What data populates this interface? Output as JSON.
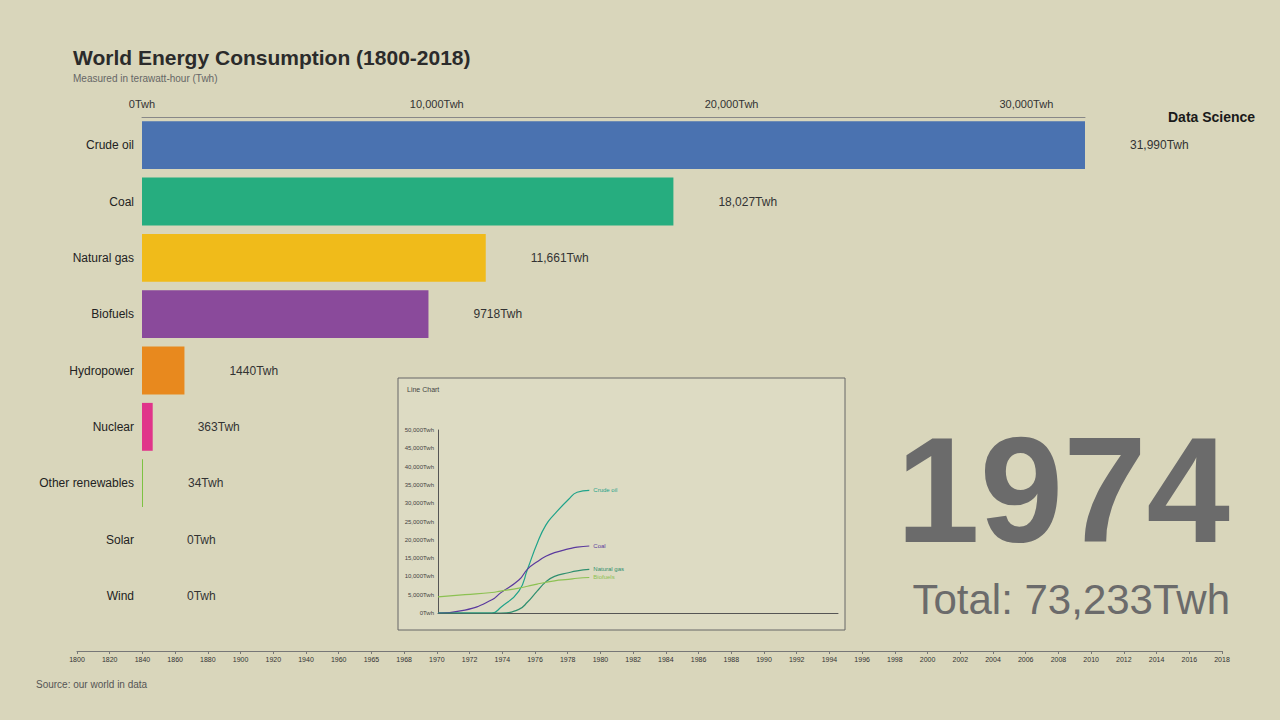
{
  "chart_data": [
    {
      "type": "bar",
      "orientation": "horizontal",
      "title": "World Energy Consumption (1800-2018)",
      "subtitle": "Measured in terawatt-hour (Twh)",
      "categories": [
        "Crude oil",
        "Coal",
        "Natural gas",
        "Biofuels",
        "Hydropower",
        "Nuclear",
        "Other renewables",
        "Solar",
        "Wind"
      ],
      "values": [
        31990,
        18027,
        11661,
        9718,
        1440,
        363,
        34,
        0,
        0
      ],
      "value_labels": [
        "31,990Twh",
        "18,027Twh",
        "11,661Twh",
        "9718Twh",
        "1440Twh",
        "363Twh",
        "34Twh",
        "0Twh",
        "0Twh"
      ],
      "colors": [
        "#4a72b0",
        "#26ad7f",
        "#f0bb1a",
        "#8a4a9b",
        "#e8891e",
        "#e0348a",
        "#7dc242",
        "#3b4a8a",
        "#2e7bbd"
      ],
      "xlim": [
        0,
        31990
      ],
      "xticks": [
        {
          "value": 0,
          "label": "0Twh"
        },
        {
          "value": 10000,
          "label": "10,000Twh"
        },
        {
          "value": 20000,
          "label": "20,000Twh"
        },
        {
          "value": 30000,
          "label": "30,000Twh"
        }
      ],
      "data_labels": true,
      "grid": false,
      "annotations": {
        "year": "1974",
        "total": "Total: 73,233Twh",
        "brand": "Data Science",
        "source": "Source: our world in data"
      }
    },
    {
      "type": "line",
      "title": "Line Chart",
      "x": [
        1800,
        1831,
        1862,
        1872,
        1893,
        1903,
        1914,
        1924,
        1934,
        1950,
        1960,
        1974
      ],
      "series": [
        {
          "name": "Crude oil",
          "color": "#1fa38a",
          "values": [
            0,
            0,
            0,
            1500,
            6000,
            12000,
            19000,
            24000,
            27000,
            31000,
            33000,
            33500
          ]
        },
        {
          "name": "Coal",
          "color": "#5b3a9e",
          "values": [
            0,
            800,
            3600,
            5500,
            9000,
            12000,
            14000,
            15500,
            16500,
            17500,
            18000,
            18300
          ]
        },
        {
          "name": "Natural gas",
          "color": "#2f8f6f",
          "values": [
            0,
            0,
            0,
            0,
            1000,
            3000,
            6000,
            8500,
            10000,
            11000,
            11500,
            11900
          ]
        },
        {
          "name": "Biofuels",
          "color": "#8cc152",
          "values": [
            4400,
            5000,
            5600,
            6000,
            6800,
            7300,
            7900,
            8400,
            8800,
            9200,
            9500,
            9700
          ]
        }
      ],
      "xlim": [
        1800,
        2260
      ],
      "ylim": [
        0,
        50000
      ],
      "yticks": [
        {
          "value": 0,
          "label": "0Twh"
        },
        {
          "value": 5000,
          "label": "5,000Twh"
        },
        {
          "value": 10000,
          "label": "10,000Twh"
        },
        {
          "value": 15000,
          "label": "15,000Twh"
        },
        {
          "value": 20000,
          "label": "20,000Twh"
        },
        {
          "value": 25000,
          "label": "25,000Twh"
        },
        {
          "value": 30000,
          "label": "30,000Twh"
        },
        {
          "value": 35000,
          "label": "35,000Twh"
        },
        {
          "value": 40000,
          "label": "40,000Twh"
        },
        {
          "value": 45000,
          "label": "45,000Twh"
        },
        {
          "value": 50000,
          "label": "50,000Twh"
        }
      ],
      "tick_labels": "y",
      "grid": false
    },
    {
      "type": "timeline",
      "categories": [
        "1800",
        "1820",
        "1840",
        "1860",
        "1880",
        "1900",
        "1920",
        "1940",
        "1960",
        "1965",
        "1968",
        "1970",
        "1972",
        "1974",
        "1976",
        "1978",
        "1980",
        "1982",
        "1984",
        "1986",
        "1988",
        "1990",
        "1992",
        "1994",
        "1996",
        "1998",
        "2000",
        "2002",
        "2004",
        "2006",
        "2008",
        "2010",
        "2012",
        "2014",
        "2016",
        "2018"
      ],
      "tick_labels": "x"
    }
  ]
}
